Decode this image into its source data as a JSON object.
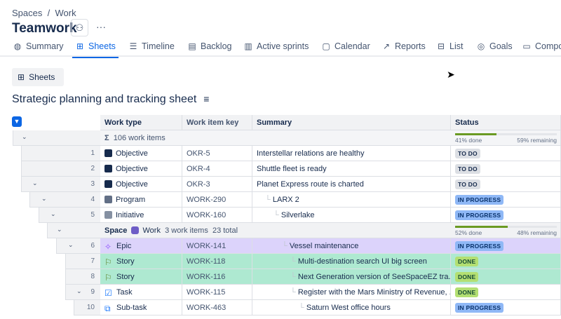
{
  "breadcrumb": {
    "items": [
      "Spaces",
      "Work"
    ],
    "sep": "/"
  },
  "header": {
    "title": "Teamwork",
    "people_icon": "people-icon",
    "more": "···"
  },
  "tabs": [
    {
      "label": "Summary",
      "icon": "globe-icon",
      "glyph": "◍"
    },
    {
      "label": "Sheets",
      "icon": "table-icon",
      "glyph": "⊞",
      "active": true
    },
    {
      "label": "Timeline",
      "icon": "timeline-icon",
      "glyph": "☰"
    },
    {
      "label": "Backlog",
      "icon": "backlog-icon",
      "glyph": "▤"
    },
    {
      "label": "Active sprints",
      "icon": "board-icon",
      "glyph": "▥"
    },
    {
      "label": "Calendar",
      "icon": "calendar-icon",
      "glyph": "▢"
    },
    {
      "label": "Reports",
      "icon": "chart-icon",
      "glyph": "↗"
    },
    {
      "label": "List",
      "icon": "list-icon",
      "glyph": "⊟"
    },
    {
      "label": "Goals",
      "icon": "goal-icon",
      "glyph": "◎"
    },
    {
      "label": "Compo",
      "icon": "components-icon",
      "glyph": "▭"
    }
  ],
  "view_button": {
    "label": "Sheets"
  },
  "sheet_title": "Strategic planning and tracking sheet",
  "columns": [
    "Work type",
    "Work item key",
    "Summary",
    "Status"
  ],
  "totals": {
    "label": "106 work items",
    "done": "41% done",
    "remaining": "59% remaining",
    "done_pct": 41
  },
  "space_group": {
    "label": "Space",
    "name": "Work",
    "items": "3 work items",
    "total": "23 total",
    "done": "52% done",
    "remaining": "48% remaining",
    "done_pct": 52
  },
  "colors": {
    "accent": "#0c66e4",
    "epic_row": "#dcd3fb",
    "story_row": "#aee9d1"
  },
  "rows": [
    {
      "num": "1",
      "type": "Objective",
      "key": "OKR-5",
      "summary": "Interstellar relations are healthy",
      "status": "TO DO"
    },
    {
      "num": "2",
      "type": "Objective",
      "key": "OKR-4",
      "summary": "Shuttle fleet is ready",
      "status": "TO DO"
    },
    {
      "num": "3",
      "type": "Objective",
      "key": "OKR-3",
      "summary": "Planet Express route is charted",
      "status": "TO DO"
    },
    {
      "num": "4",
      "type": "Program",
      "key": "WORK-290",
      "summary": "LARX 2",
      "status": "IN PROGRESS"
    },
    {
      "num": "5",
      "type": "Initiative",
      "key": "WORK-160",
      "summary": "Silverlake",
      "status": "IN PROGRESS"
    },
    {
      "num": "6",
      "type": "Epic",
      "key": "WORK-141",
      "summary": "Vessel maintenance",
      "status": "IN PROGRESS"
    },
    {
      "num": "7",
      "type": "Story",
      "key": "WORK-118",
      "summary": "Multi-destination search UI big screen",
      "status": "DONE"
    },
    {
      "num": "8",
      "type": "Story",
      "key": "WORK-116",
      "summary": "Next Generation version of SeeSpaceEZ tra...",
      "status": "DONE"
    },
    {
      "num": "9",
      "type": "Task",
      "key": "WORK-115",
      "summary": "Register with the Mars Ministry of Revenue, ...",
      "status": "DONE"
    },
    {
      "num": "10",
      "type": "Sub-task",
      "key": "WORK-463",
      "summary": "Saturn West office hours",
      "status": "IN PROGRESS"
    }
  ]
}
